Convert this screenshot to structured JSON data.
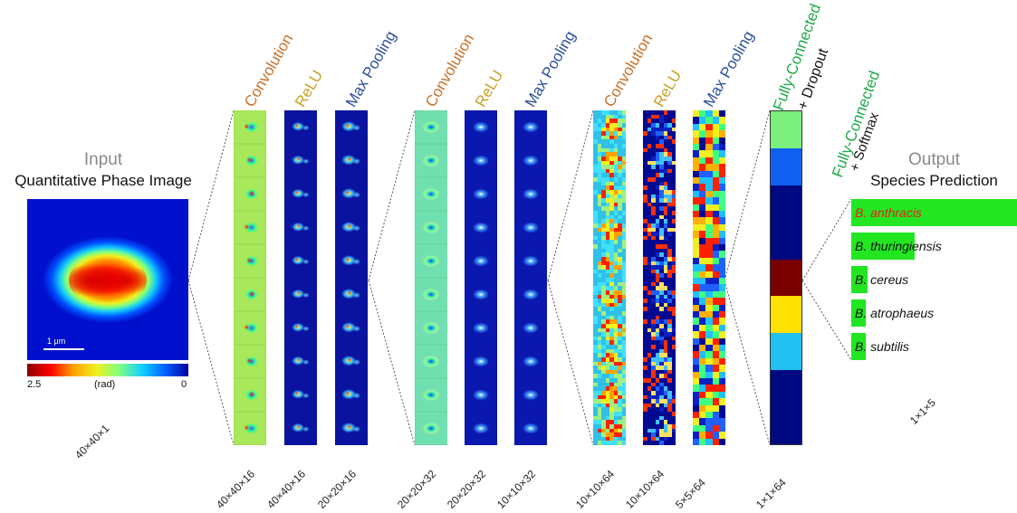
{
  "input": {
    "title": "Input",
    "subtitle": "Quantitative Phase Image",
    "scale_bar_label": "1 μm",
    "colorbar_min_label": "2.5",
    "colorbar_unit_label": "(rad)",
    "colorbar_max_label": "0",
    "dims": "40×40×1"
  },
  "layers": [
    {
      "label": "Convolution",
      "dims": "40×40×16",
      "color": "#c8702a",
      "kind": "conv1"
    },
    {
      "label": "ReLU",
      "dims": "40×40×16",
      "color": "#c9a227",
      "kind": "relu1"
    },
    {
      "label": "Max Pooling",
      "dims": "20×20×16",
      "color": "#2d4f9e",
      "kind": "pool1"
    },
    {
      "label": "Convolution",
      "dims": "20×20×32",
      "color": "#c8702a",
      "kind": "conv2"
    },
    {
      "label": "ReLU",
      "dims": "20×20×32",
      "color": "#c9a227",
      "kind": "relu2"
    },
    {
      "label": "Max Pooling",
      "dims": "10×10×32",
      "color": "#2d4f9e",
      "kind": "pool2"
    },
    {
      "label": "Convolution",
      "dims": "10×10×64",
      "color": "#c8702a",
      "kind": "conv3"
    },
    {
      "label": "ReLU",
      "dims": "10×10×64",
      "color": "#c9a227",
      "kind": "relu3"
    },
    {
      "label": "Max Pooling",
      "dims": "5×5×64",
      "color": "#2d4f9e",
      "kind": "pool3"
    }
  ],
  "fc1": {
    "label": "Fully-Connected",
    "sublabel": "+ Dropout",
    "dims": "1×1×64",
    "colors": [
      "#7cf07c",
      "#1060f0",
      "#000a80",
      "#000a80",
      "#7a0000",
      "#ffe000",
      "#20c0f0",
      "#000a80",
      "#000a80"
    ]
  },
  "fc2": {
    "label": "Fully-Connected",
    "sublabel": "+ Softmax"
  },
  "output": {
    "title": "Output",
    "subtitle": "Species Prediction",
    "dims": "1×1×5",
    "bar_color": "#22e622",
    "predictions": [
      {
        "genus": "B.",
        "species": "anthracis",
        "value": 1.0,
        "highlight": true
      },
      {
        "genus": "B.",
        "species": "thuringiensis",
        "value": 0.38,
        "highlight": false
      },
      {
        "genus": "B.",
        "species": "cereus",
        "value": 0.1,
        "highlight": false
      },
      {
        "genus": "B.",
        "species": "atrophaeus",
        "value": 0.09,
        "highlight": false
      },
      {
        "genus": "B.",
        "species": "subtilis",
        "value": 0.09,
        "highlight": false
      }
    ]
  },
  "colors": {
    "label_green": "#1faa4a",
    "highlight_red": "#e8201e",
    "label_gray": "#8a8a8a"
  }
}
